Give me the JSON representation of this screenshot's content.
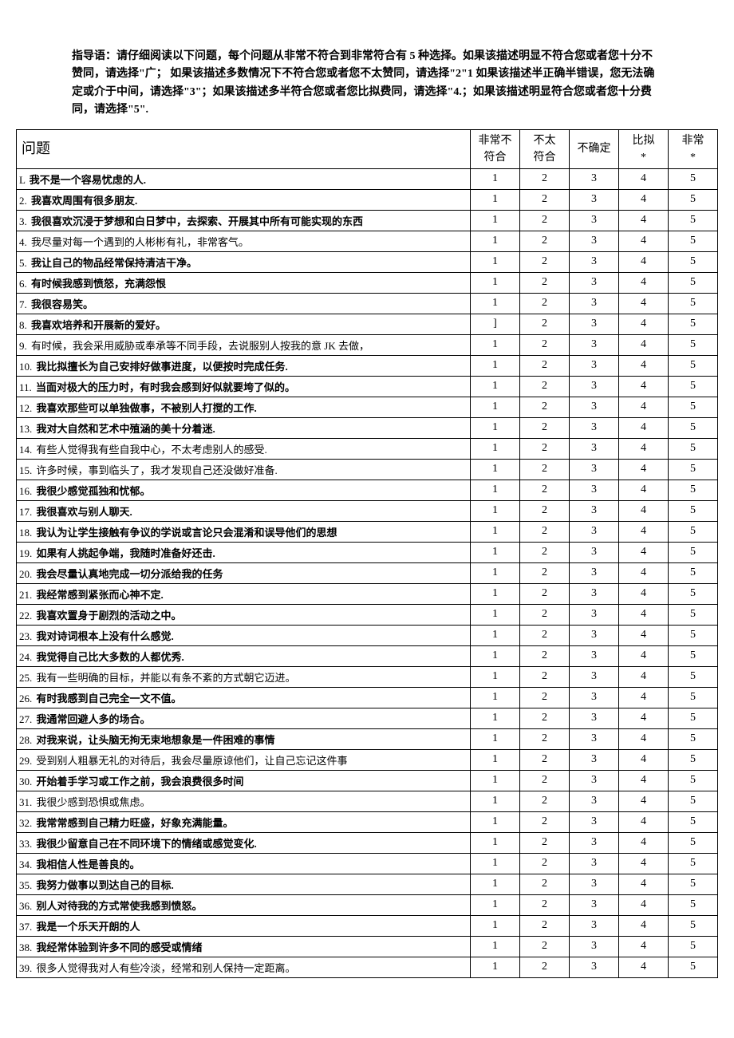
{
  "instructions": "指导语：请仔细阅读以下问题，每个问题从非常不符合到非常符合有 5 种选择。如果该描述明显不符合您或者您十分不赞同，请选择\"广； 如果该描述多数情况下不符合您或者您不太赞同，请选择\"2\"1 如果该描述半正确半错误，您无法确定或介于中间，请选择\"3\"；如果该描述多半符合您或者您比拟费同，请选择\"4.；如果该描述明显符合您或者您十分费同，请选择\"5\".",
  "headers": {
    "question": "问题",
    "col1": "非常不符合",
    "col2": "不太符合",
    "col3": "不确定",
    "col4": "比拟*",
    "col5": "非常*"
  },
  "scale_values": [
    "1",
    "2",
    "3",
    "4",
    "5"
  ],
  "questions": [
    {
      "num": "L",
      "text": "我不是一个容易忧虑的人.",
      "bold": true
    },
    {
      "num": "2.",
      "text": "我喜欢周围有很多朋友.",
      "bold": true
    },
    {
      "num": "3.",
      "text": "我很喜欢沉浸于梦想和白日梦中，去探索、开展其中所有可能实现的东西",
      "bold": true
    },
    {
      "num": "4.",
      "text": "我尽量对每一个遇到的人彬彬有礼，非常客气。",
      "bold": false
    },
    {
      "num": "5.",
      "text": "我让自己的物品经常保持清洁干净。",
      "bold": true
    },
    {
      "num": "6.",
      "text": "有时候我感到愤怒，充满怨恨",
      "bold": true
    },
    {
      "num": "7.",
      "text": "我很容易笑。",
      "bold": true
    },
    {
      "num": "8.",
      "text": "我喜欢培养和开展新的爱好。",
      "bold": true,
      "c1": "]"
    },
    {
      "num": "9.",
      "text": "有时候，我会采用威胁或奉承等不同手段，去说服别人按我的意 JK 去做，",
      "bold": false,
      "mixed": true
    },
    {
      "num": "10.",
      "text": "我比拟擅长为自己安排好做事进度，以便按时完成任务.",
      "bold": true
    },
    {
      "num": "11.",
      "text": "当面对极大的压力时，有时我会感到好似就要垮了似的。",
      "bold": true
    },
    {
      "num": "12.",
      "text": "我喜欢那些可以单独做事，不被别人打搅的工作.",
      "bold": true
    },
    {
      "num": "13.",
      "text": "我对大自然和艺术中殖涵的美十分着迷.",
      "bold": true
    },
    {
      "num": "14.",
      "text": "有些人觉得我有些自我中心，不太考虑别人的感受.",
      "bold": false
    },
    {
      "num": "15.",
      "text": "许多时候，事到临头了，我才发现自己还没做好准备.",
      "bold": false
    },
    {
      "num": "16.",
      "text": "我很少感觉孤独和忧郁。",
      "bold": true
    },
    {
      "num": "17.",
      "text": "我很喜欢与别人聊天.",
      "bold": true
    },
    {
      "num": "18.",
      "text": "我认为让学生接触有争议的学说或言论只会混淆和误导他们的思想",
      "bold": true
    },
    {
      "num": "19.",
      "text": "如果有人挑起争端，我随时准备好还击.",
      "bold": true
    },
    {
      "num": "20.",
      "text": "我会尽量认真地完成一切分派给我的任务",
      "bold": true
    },
    {
      "num": "21.",
      "text": "我经常感到紧张而心神不定.",
      "bold": true
    },
    {
      "num": "22.",
      "text": "我喜欢置身于剧烈的活动之中。",
      "bold": true
    },
    {
      "num": "23.",
      "text": "我对诗词根本上没有什么感觉.",
      "bold": true
    },
    {
      "num": "24.",
      "text": "我觉得自己比大多数的人都优秀.",
      "bold": true
    },
    {
      "num": "25.",
      "text": "我有一些明确的目标，并能以有条不紊的方式朝它迈进。",
      "bold": false
    },
    {
      "num": "26.",
      "text": "有时我感到自己完全一文不值。",
      "bold": true
    },
    {
      "num": "27.",
      "text": "我通常回避人多的场合。",
      "bold": true
    },
    {
      "num": "28.",
      "text": "对我来说，让头脑无拘无束地想象是一件困难的事情",
      "bold": true
    },
    {
      "num": "29.",
      "text": "受到别人粗暴无礼的对待后，我会尽量原谅他们，让自己忘记这件事",
      "bold": false
    },
    {
      "num": "30.",
      "text": "开始着手学习或工作之前，我会浪费很多时间",
      "bold": true
    },
    {
      "num": "31.",
      "text": "我很少感到恐惧或焦虑。",
      "bold": false
    },
    {
      "num": "32.",
      "text": "我常常感到自己精力旺盛，好象充满能量。",
      "bold": true
    },
    {
      "num": "33.",
      "text": "我很少留意自己在不同环境下的情绪或感觉变化.",
      "bold": true
    },
    {
      "num": "34.",
      "text": "我相信人性是善良的。",
      "bold": true
    },
    {
      "num": "35.",
      "text": "我努力做事以到达自己的目标.",
      "bold": true
    },
    {
      "num": "36.",
      "text": "别人对待我的方式常使我感到愤怒。",
      "bold": true
    },
    {
      "num": "37.",
      "text": "我是一个乐天开朗的人",
      "bold": true
    },
    {
      "num": "38.",
      "text": "我经常体验到许多不同的感受或情绪",
      "bold": true
    },
    {
      "num": "39.",
      "text": "很多人觉得我对人有些冷淡，经常和别人保持一定距离。",
      "bold": false
    }
  ]
}
